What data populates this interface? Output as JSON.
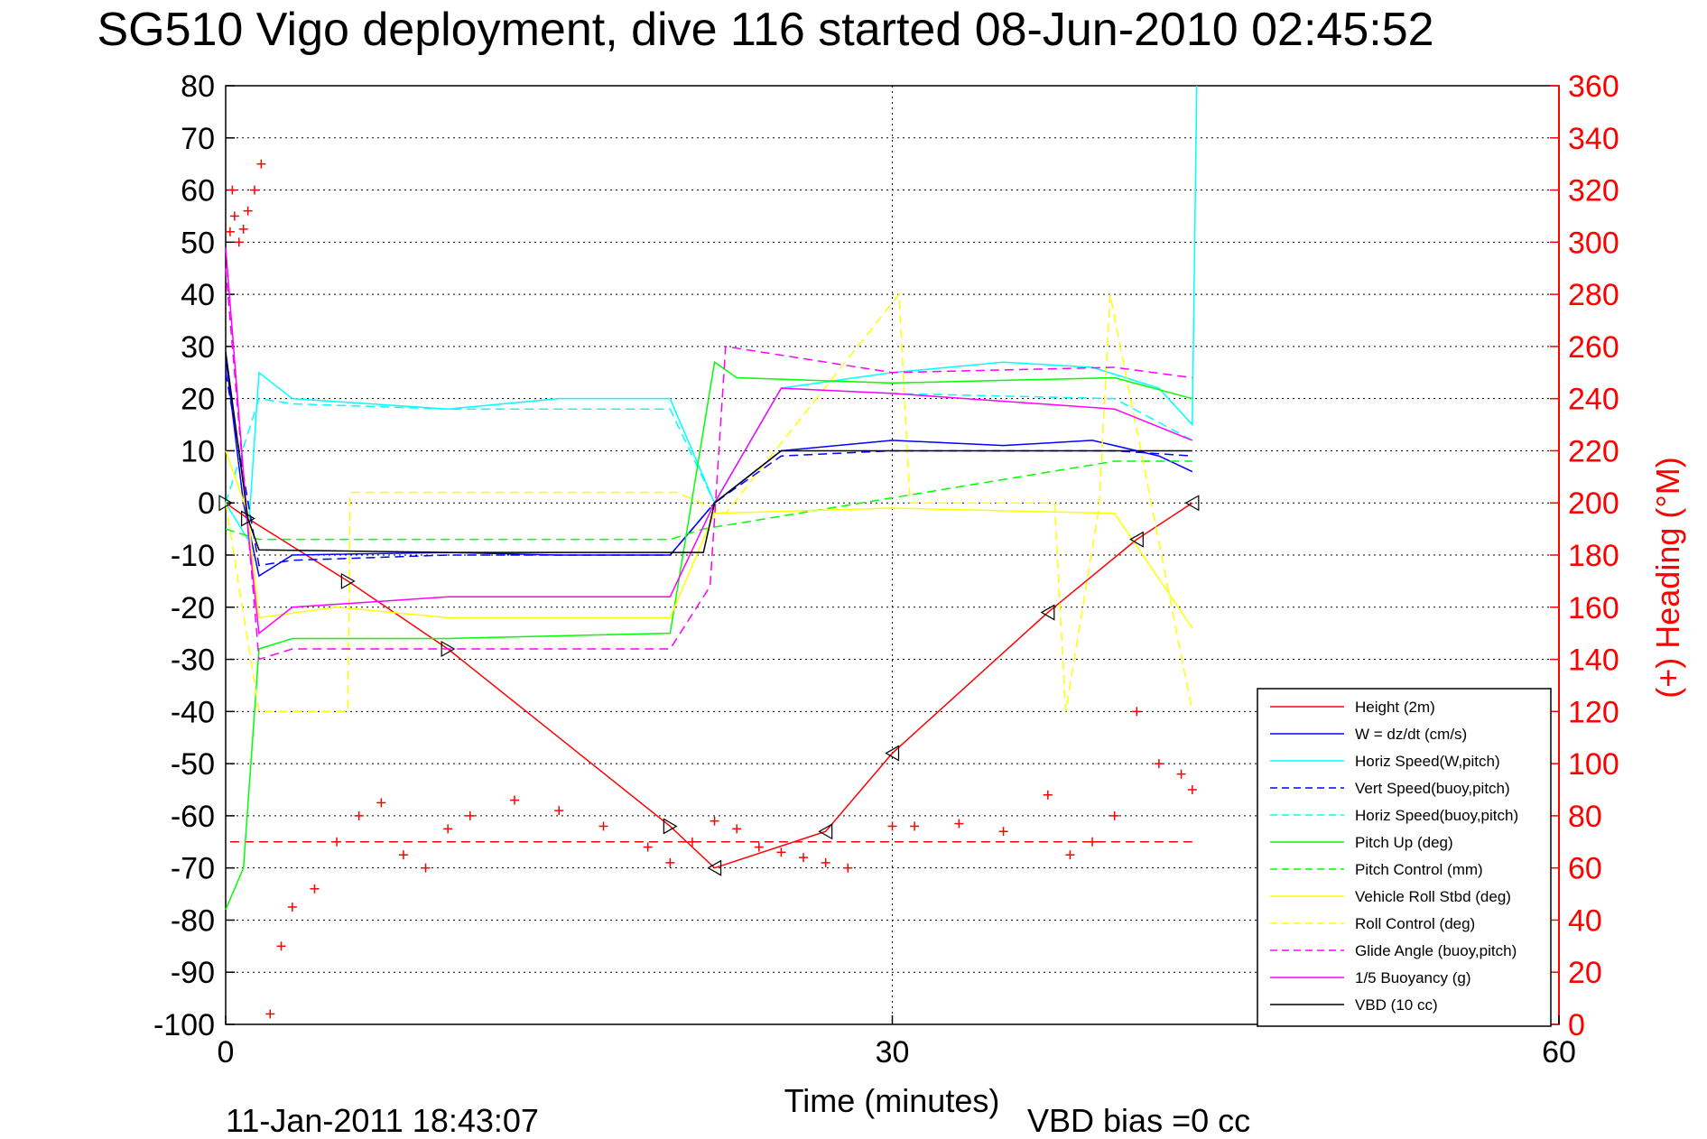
{
  "chart_data": {
    "type": "line",
    "title": "SG510 Vigo deployment, dive 116 started 08-Jun-2010 02:45:52",
    "xlabel": "Time (minutes)",
    "ylabel_right": "(+) Heading (°M)",
    "xlim": [
      0,
      60
    ],
    "ylim_left": [
      -100,
      80
    ],
    "ylim_right": [
      0,
      360
    ],
    "x_ticks": [
      "0",
      "30",
      "60"
    ],
    "y_ticks_left": [
      "80",
      "70",
      "60",
      "50",
      "40",
      "30",
      "20",
      "10",
      "0",
      "-10",
      "-20",
      "-30",
      "-40",
      "-50",
      "-60",
      "-70",
      "-80",
      "-90",
      "-100"
    ],
    "y_ticks_right": [
      "360",
      "340",
      "320",
      "300",
      "280",
      "260",
      "240",
      "220",
      "200",
      "180",
      "160",
      "140",
      "120",
      "100",
      "80",
      "60",
      "40",
      "20",
      "0"
    ],
    "grid": true,
    "legend_position": "bottom-right",
    "footer_date": "11-Jan-2011 18:43:07",
    "footer_note": "VBD bias =0 cc",
    "colors": {
      "height": "#ff0000",
      "w": "#0000ff",
      "horiz_speed": "#00ffff",
      "pitch": "#00ff00",
      "roll": "#ffff00",
      "glide": "#ff00ff",
      "vbd": "#000000",
      "heading": "#ff0000"
    },
    "series": [
      {
        "name": "Height (2m)",
        "color": "#ff0000",
        "dash": "solid",
        "x": [
          0,
          1,
          5.5,
          10,
          20,
          22,
          27,
          30,
          37,
          41,
          43.5
        ],
        "y": [
          0,
          -3,
          -15,
          -28,
          -62,
          -70,
          -63,
          -48,
          -21,
          -7,
          0
        ]
      },
      {
        "name": "W = dz/dt (cm/s)",
        "color": "#0000ff",
        "dash": "solid",
        "x": [
          0,
          0.8,
          1.5,
          3,
          10,
          15,
          20,
          22,
          25,
          30,
          35,
          39,
          42,
          43.5
        ],
        "y": [
          28,
          0,
          -14,
          -10,
          -9.5,
          -10,
          -10,
          0,
          10,
          12,
          11,
          12,
          9,
          6
        ]
      },
      {
        "name": "Horiz Speed(W,pitch)",
        "color": "#00ffff",
        "dash": "solid",
        "x": [
          0,
          1,
          1.5,
          3,
          10,
          15,
          20,
          22,
          25,
          30,
          35,
          39,
          42,
          43.5,
          43.7
        ],
        "y": [
          0,
          -7,
          25,
          20,
          18,
          20,
          20,
          0,
          22,
          25,
          27,
          26,
          22,
          15,
          80
        ]
      },
      {
        "name": "Vert Speed(buoy,pitch)",
        "color": "#0000ff",
        "dash": "dashed",
        "x": [
          0,
          1.5,
          3,
          10,
          20,
          22,
          25,
          30,
          40,
          43.5
        ],
        "y": [
          25,
          -12,
          -11,
          -10,
          -10,
          0,
          9,
          10,
          10,
          9
        ]
      },
      {
        "name": "Horiz Speed(buoy,pitch)",
        "color": "#00ffff",
        "dash": "dashed",
        "x": [
          0,
          1.5,
          3,
          10,
          20,
          22,
          25,
          30,
          40,
          43.5
        ],
        "y": [
          0,
          20,
          19,
          18,
          18,
          0,
          22,
          21,
          20,
          12
        ]
      },
      {
        "name": "Pitch Up (deg)",
        "color": "#00ff00",
        "dash": "solid",
        "x": [
          0,
          0.8,
          1.5,
          3,
          10,
          20,
          22,
          23,
          30,
          40,
          43.5
        ],
        "y": [
          -78,
          -70,
          -28,
          -26,
          -26,
          -25,
          27,
          24,
          23,
          24,
          20
        ]
      },
      {
        "name": "Pitch Control (mm)",
        "color": "#00ff00",
        "dash": "dashed",
        "x": [
          0,
          1.5,
          20,
          21.5,
          40,
          43.5
        ],
        "y": [
          -5,
          -7,
          -7,
          -5,
          8,
          8
        ]
      },
      {
        "name": "Vehicle Roll Stbd (deg)",
        "color": "#ffff00",
        "dash": "solid",
        "x": [
          0,
          1,
          1.5,
          5,
          10,
          20,
          22,
          30,
          40,
          43.5
        ],
        "y": [
          10,
          -2,
          -22,
          -20,
          -22,
          -22,
          -2,
          -1,
          -2,
          -24
        ]
      },
      {
        "name": "Roll Control (deg)",
        "color": "#ffff00",
        "dash": "dashed",
        "x": [
          0,
          1.5,
          5.5,
          5.6,
          10.2,
          10.8,
          19.8,
          20.3,
          22.5,
          30.3,
          30.8,
          37.3,
          37.8,
          39.3,
          39.8,
          43.5
        ],
        "y": [
          0,
          -40,
          -40,
          2,
          2,
          2,
          2,
          2,
          -2,
          40,
          0,
          0,
          -40,
          -1,
          40,
          -40
        ]
      },
      {
        "name": "Glide Angle (buoy,pitch)",
        "color": "#ff00ff",
        "dash": "dashed",
        "x": [
          0,
          1.5,
          3,
          10,
          20,
          21.8,
          22.5,
          30,
          40,
          43.5
        ],
        "y": [
          45,
          -30,
          -28,
          -28,
          -28,
          -16,
          30,
          25,
          26,
          24
        ]
      },
      {
        "name": "1/5 Buoyancy (g)",
        "color": "#ff00ff",
        "dash": "solid",
        "x": [
          0,
          1,
          1.5,
          3,
          10,
          20,
          22,
          25,
          30,
          40,
          43.5
        ],
        "y": [
          49,
          -5,
          -25,
          -20,
          -18,
          -18,
          0,
          22,
          21,
          18,
          12
        ]
      },
      {
        "name": "VBD (10 cc)",
        "color": "#000000",
        "dash": "solid",
        "x": [
          0,
          1,
          1.5,
          10,
          21.5,
          22,
          25,
          30,
          40,
          43.5
        ],
        "y": [
          29,
          -3,
          -9,
          -9.5,
          -9.5,
          0,
          10,
          10,
          10,
          10
        ]
      }
    ],
    "heading_series": {
      "name": "(+) Heading (°M)",
      "color": "#ff0000",
      "marker": "+",
      "x": [
        0.2,
        0.3,
        0.4,
        0.6,
        0.8,
        1.0,
        1.3,
        1.6,
        2.0,
        2.5,
        3,
        4,
        5,
        6,
        7,
        8,
        9,
        10,
        11,
        13,
        15,
        17,
        19,
        20,
        21,
        22,
        23,
        24,
        25,
        26,
        27,
        28,
        30,
        31,
        33,
        35,
        37,
        38,
        39,
        40,
        41,
        42,
        43,
        43.5
      ],
      "y": [
        304,
        320,
        310,
        300,
        305,
        312,
        320,
        330,
        4,
        30,
        45,
        52,
        70,
        80,
        85,
        65,
        60,
        75,
        80,
        86,
        82,
        76,
        68,
        62,
        70,
        78,
        75,
        68,
        66,
        64,
        62,
        60,
        76,
        76,
        77,
        74,
        88,
        65,
        70,
        80,
        120,
        100,
        96,
        90
      ]
    },
    "reference_line": {
      "color": "#ff0000",
      "dash": "dashed",
      "x": [
        0.2,
        43.5
      ],
      "y": [
        -65,
        -65
      ]
    }
  }
}
